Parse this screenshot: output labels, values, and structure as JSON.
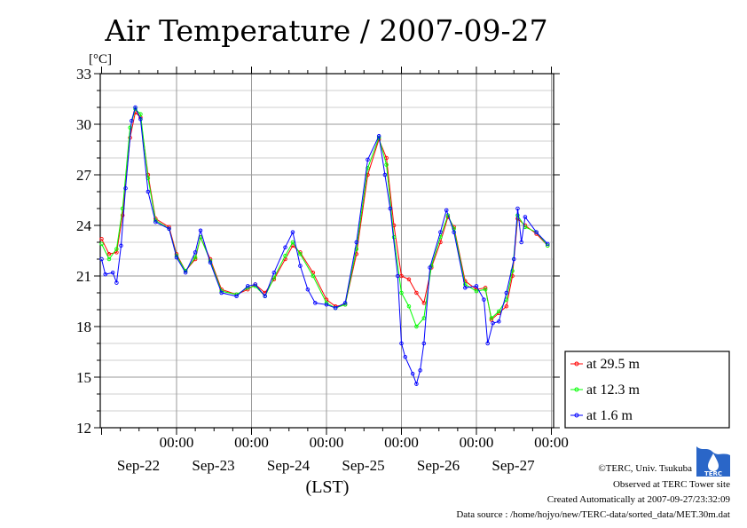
{
  "chart_data": {
    "type": "line",
    "title": "Air Temperature / 2007-09-27",
    "unit_label": "[°C]",
    "xlabel": "(LST)",
    "ylim": [
      12,
      33
    ],
    "yticks": [
      12,
      15,
      18,
      21,
      24,
      27,
      30,
      33
    ],
    "xlim": [
      -0.95,
      5.0
    ],
    "xticks": [
      {
        "x": 0,
        "time": "00:00",
        "date": "Sep-22"
      },
      {
        "x": 1,
        "time": "00:00",
        "date": "Sep-23"
      },
      {
        "x": 2,
        "time": "00:00",
        "date": "Sep-24"
      },
      {
        "x": 3,
        "time": "00:00",
        "date": "Sep-25"
      },
      {
        "x": 4,
        "time": "00:00",
        "date": "Sep-26"
      },
      {
        "x": 5,
        "time": "00:00",
        "date": "Sep-27"
      }
    ],
    "grid": true,
    "legend_position": "right",
    "series": [
      {
        "name": "at 29.5 m",
        "color": "#ff0000",
        "points": [
          [
            -1.0,
            23.2
          ],
          [
            -0.9,
            22.3
          ],
          [
            -0.8,
            22.4
          ],
          [
            -0.72,
            24.6
          ],
          [
            -0.62,
            29.2
          ],
          [
            -0.55,
            30.7
          ],
          [
            -0.48,
            30.4
          ],
          [
            -0.38,
            27.0
          ],
          [
            -0.28,
            24.4
          ],
          [
            -0.1,
            23.9
          ],
          [
            0.0,
            22.3
          ],
          [
            0.12,
            21.3
          ],
          [
            0.25,
            22.0
          ],
          [
            0.32,
            23.3
          ],
          [
            0.45,
            22.0
          ],
          [
            0.6,
            20.2
          ],
          [
            0.8,
            19.9
          ],
          [
            0.95,
            20.2
          ],
          [
            1.05,
            20.5
          ],
          [
            1.18,
            20.0
          ],
          [
            1.3,
            20.8
          ],
          [
            1.45,
            22.0
          ],
          [
            1.55,
            22.8
          ],
          [
            1.65,
            22.4
          ],
          [
            1.82,
            21.2
          ],
          [
            2.0,
            19.6
          ],
          [
            2.12,
            19.2
          ],
          [
            2.25,
            19.3
          ],
          [
            2.4,
            22.3
          ],
          [
            2.55,
            27.0
          ],
          [
            2.7,
            29.1
          ],
          [
            2.8,
            28.0
          ],
          [
            2.9,
            24.0
          ],
          [
            3.0,
            21.0
          ],
          [
            3.1,
            20.8
          ],
          [
            3.2,
            20.0
          ],
          [
            3.3,
            19.4
          ],
          [
            3.4,
            21.5
          ],
          [
            3.52,
            23.0
          ],
          [
            3.62,
            24.5
          ],
          [
            3.7,
            23.9
          ],
          [
            3.85,
            20.7
          ],
          [
            4.0,
            20.2
          ],
          [
            4.12,
            20.3
          ],
          [
            4.2,
            18.4
          ],
          [
            4.3,
            18.8
          ],
          [
            4.4,
            19.2
          ],
          [
            4.48,
            21.0
          ],
          [
            4.55,
            24.4
          ],
          [
            4.65,
            24.0
          ],
          [
            4.8,
            23.5
          ],
          [
            4.95,
            22.8
          ]
        ]
      },
      {
        "name": "at 12.3 m",
        "color": "#00ff00",
        "points": [
          [
            -1.0,
            22.9
          ],
          [
            -0.9,
            22.0
          ],
          [
            -0.8,
            22.6
          ],
          [
            -0.72,
            25.0
          ],
          [
            -0.62,
            29.8
          ],
          [
            -0.55,
            30.9
          ],
          [
            -0.48,
            30.6
          ],
          [
            -0.38,
            26.8
          ],
          [
            -0.28,
            24.3
          ],
          [
            -0.1,
            23.8
          ],
          [
            0.0,
            22.2
          ],
          [
            0.12,
            21.3
          ],
          [
            0.25,
            22.1
          ],
          [
            0.32,
            23.3
          ],
          [
            0.45,
            21.9
          ],
          [
            0.6,
            20.1
          ],
          [
            0.8,
            19.9
          ],
          [
            0.95,
            20.3
          ],
          [
            1.05,
            20.4
          ],
          [
            1.18,
            19.8
          ],
          [
            1.3,
            20.9
          ],
          [
            1.45,
            22.2
          ],
          [
            1.55,
            23.0
          ],
          [
            1.65,
            22.3
          ],
          [
            1.82,
            21.0
          ],
          [
            2.0,
            19.4
          ],
          [
            2.12,
            19.1
          ],
          [
            2.25,
            19.3
          ],
          [
            2.4,
            22.6
          ],
          [
            2.55,
            27.4
          ],
          [
            2.7,
            29.2
          ],
          [
            2.8,
            27.6
          ],
          [
            2.9,
            23.3
          ],
          [
            3.0,
            20.0
          ],
          [
            3.1,
            19.2
          ],
          [
            3.2,
            18.0
          ],
          [
            3.3,
            18.5
          ],
          [
            3.4,
            21.6
          ],
          [
            3.52,
            23.3
          ],
          [
            3.62,
            24.6
          ],
          [
            3.7,
            23.8
          ],
          [
            3.85,
            20.5
          ],
          [
            4.0,
            20.1
          ],
          [
            4.12,
            20.2
          ],
          [
            4.2,
            18.5
          ],
          [
            4.3,
            18.9
          ],
          [
            4.4,
            19.6
          ],
          [
            4.48,
            21.3
          ],
          [
            4.55,
            24.6
          ],
          [
            4.65,
            23.9
          ],
          [
            4.8,
            23.6
          ],
          [
            4.95,
            22.8
          ]
        ]
      },
      {
        "name": "at 1.6 m",
        "color": "#0000ff",
        "points": [
          [
            -1.0,
            22.0
          ],
          [
            -0.95,
            21.1
          ],
          [
            -0.85,
            21.2
          ],
          [
            -0.8,
            20.6
          ],
          [
            -0.74,
            22.8
          ],
          [
            -0.68,
            26.2
          ],
          [
            -0.6,
            30.2
          ],
          [
            -0.55,
            31.0
          ],
          [
            -0.48,
            30.3
          ],
          [
            -0.38,
            26.0
          ],
          [
            -0.28,
            24.2
          ],
          [
            -0.1,
            23.8
          ],
          [
            0.0,
            22.1
          ],
          [
            0.12,
            21.2
          ],
          [
            0.25,
            22.4
          ],
          [
            0.32,
            23.7
          ],
          [
            0.45,
            21.8
          ],
          [
            0.6,
            20.0
          ],
          [
            0.8,
            19.8
          ],
          [
            0.95,
            20.4
          ],
          [
            1.05,
            20.5
          ],
          [
            1.18,
            19.8
          ],
          [
            1.3,
            21.2
          ],
          [
            1.45,
            22.7
          ],
          [
            1.55,
            23.6
          ],
          [
            1.65,
            21.6
          ],
          [
            1.75,
            20.2
          ],
          [
            1.85,
            19.4
          ],
          [
            2.0,
            19.3
          ],
          [
            2.12,
            19.1
          ],
          [
            2.25,
            19.4
          ],
          [
            2.4,
            23.0
          ],
          [
            2.55,
            27.9
          ],
          [
            2.7,
            29.3
          ],
          [
            2.78,
            27.0
          ],
          [
            2.85,
            25.0
          ],
          [
            2.95,
            21.0
          ],
          [
            3.0,
            17.0
          ],
          [
            3.05,
            16.2
          ],
          [
            3.15,
            15.2
          ],
          [
            3.2,
            14.6
          ],
          [
            3.25,
            15.4
          ],
          [
            3.3,
            17.0
          ],
          [
            3.38,
            21.5
          ],
          [
            3.52,
            23.6
          ],
          [
            3.6,
            24.9
          ],
          [
            3.7,
            23.6
          ],
          [
            3.85,
            20.3
          ],
          [
            4.0,
            20.4
          ],
          [
            4.1,
            19.6
          ],
          [
            4.15,
            17.0
          ],
          [
            4.22,
            18.2
          ],
          [
            4.3,
            18.3
          ],
          [
            4.4,
            20.0
          ],
          [
            4.5,
            22.0
          ],
          [
            4.55,
            25.0
          ],
          [
            4.6,
            23.0
          ],
          [
            4.65,
            24.5
          ],
          [
            4.8,
            23.6
          ],
          [
            4.95,
            22.9
          ]
        ]
      }
    ]
  },
  "credits": {
    "copyright": "©TERC, Univ. Tsukuba",
    "observed": "Observed at TERC Tower site",
    "created": "Created Automatically at 2007-09-27/23:32:09",
    "source": "Data source : /home/hojyo/new/TERC-data/sorted_data/MET.30m.dat",
    "logo_text": "TERC"
  }
}
